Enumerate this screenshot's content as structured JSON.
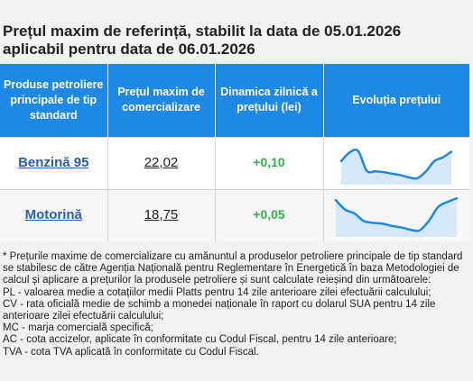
{
  "title_line1": "Prețul maxim de referință, stabilit la data de 05.01.2026",
  "title_line2": "aplicabil pentru data de 06.01.2026",
  "table": {
    "headers": [
      "Produse petroliere principale de tip standard",
      "Prețul maxim de comercializare",
      "Dinamica zilnică a prețului (lei)",
      "Evoluția prețului"
    ],
    "rows": [
      {
        "product": "Benzină 95",
        "price": "22,02",
        "change": "+0,10",
        "trend": [
          0.55,
          0.78,
          0.82,
          0.3,
          0.28,
          0.26,
          0.22,
          0.18,
          0.12,
          0.1,
          0.28,
          0.55,
          0.65,
          0.8
        ]
      },
      {
        "product": "Motorină",
        "price": "18,75",
        "change": "+0,05",
        "trend": [
          0.9,
          0.65,
          0.55,
          0.35,
          0.3,
          0.28,
          0.22,
          0.18,
          0.12,
          0.1,
          0.35,
          0.72,
          0.85,
          0.95
        ]
      }
    ],
    "trend_color": "#1e88e5",
    "trend_fill": "#d7e8f8"
  },
  "notes": [
    "* Prețurile maxime de comercializare cu amănuntul a produselor petroliere principale de tip standard se stabilesc de către Agenția Națională pentru Reglementare în Energetică în baza Metodologiei de calcul și aplicare a prețurilor la produsele petroliere și sunt calculate reieșind din următoarele:",
    "PL - valoarea medie a cotațiilor medii Platts pentru 14 zile anterioare zilei efectuării calculului;",
    "CV - rata oficială medie de schimb a monedei naționale în raport cu dolarul SUA pentru 14 zile anterioare zilei efectuării calculului;",
    "MC - marja comercială specifică;",
    "AC - cota accizelor, aplicate în conformitate cu Codul Fiscal, pentru 14 zile anterioare;",
    "TVA - cota TVA aplicată în conformitate cu Codul Fiscal."
  ]
}
